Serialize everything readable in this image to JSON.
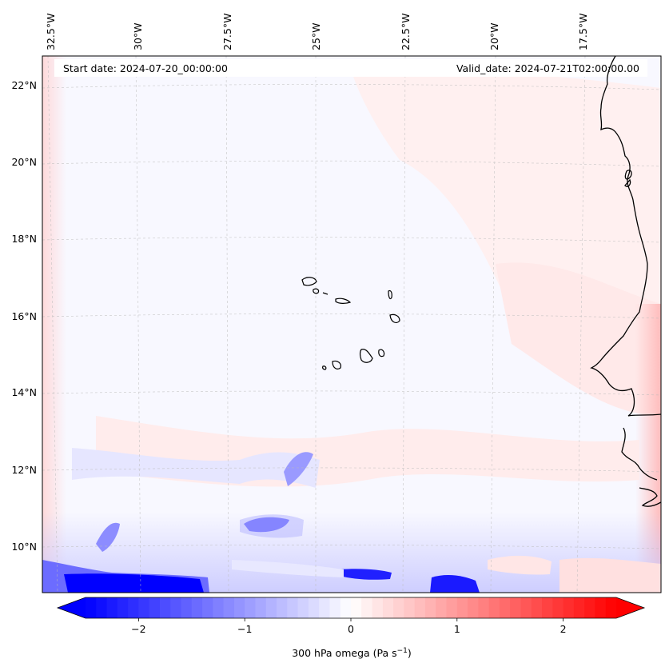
{
  "map": {
    "header_left": "Start date: 2024-07-20_00:00:00",
    "header_right": "Valid_date: 2024-07-21T02:00:00.00",
    "lon_labels": [
      "32.5°W",
      "30°W",
      "27.5°W",
      "25°W",
      "22.5°W",
      "20°W",
      "17.5°W"
    ],
    "lat_labels": [
      "22°N",
      "20°N",
      "18°N",
      "16°N",
      "14°N",
      "12°N",
      "10°N"
    ],
    "colorbar": {
      "label_text": "300 hPa omega (Pa s",
      "label_sup": "−1",
      "label_close": ")",
      "ticks": [
        "−2",
        "−1",
        "0",
        "1",
        "2"
      ],
      "vmin": -2.5,
      "vmax": 2.5,
      "colormap": "bwr",
      "color_low": "#0000ff",
      "color_mid": "#ffffff",
      "color_high": "#ff0000"
    }
  }
}
